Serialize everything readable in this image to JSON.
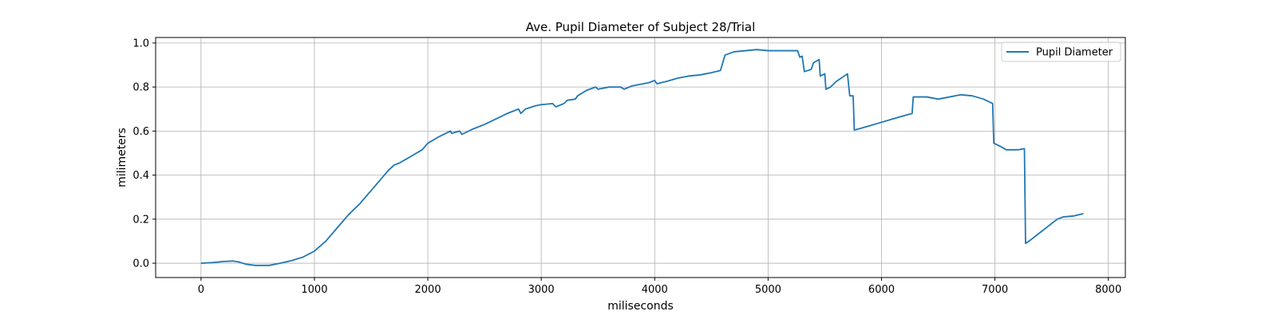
{
  "chart_data": {
    "type": "line",
    "title": "Ave. Pupil Diameter of Subject 28/Trial",
    "xlabel": "miliseconds",
    "ylabel": "milimeters",
    "xlim": [
      -400,
      8150
    ],
    "ylim": [
      -0.065,
      1.025
    ],
    "xticks": [
      0,
      1000,
      2000,
      3000,
      4000,
      5000,
      6000,
      7000,
      8000
    ],
    "yticks": [
      0.0,
      0.2,
      0.4,
      0.6,
      0.8,
      1.0
    ],
    "xtick_labels": [
      "0",
      "1000",
      "2000",
      "3000",
      "4000",
      "5000",
      "6000",
      "7000",
      "8000"
    ],
    "ytick_labels": [
      "0.0",
      "0.2",
      "0.4",
      "0.6",
      "0.8",
      "1.0"
    ],
    "grid": true,
    "legend_position": "top-right",
    "series": [
      {
        "name": "Pupil Diameter",
        "color": "#1f77b4",
        "points": [
          [
            0,
            0.0
          ],
          [
            100,
            0.003
          ],
          [
            200,
            0.008
          ],
          [
            280,
            0.01
          ],
          [
            330,
            0.006
          ],
          [
            400,
            -0.005
          ],
          [
            480,
            -0.01
          ],
          [
            600,
            -0.01
          ],
          [
            700,
            0.0
          ],
          [
            800,
            0.012
          ],
          [
            900,
            0.028
          ],
          [
            1000,
            0.055
          ],
          [
            1100,
            0.1
          ],
          [
            1200,
            0.16
          ],
          [
            1300,
            0.22
          ],
          [
            1400,
            0.27
          ],
          [
            1500,
            0.33
          ],
          [
            1600,
            0.39
          ],
          [
            1650,
            0.42
          ],
          [
            1700,
            0.445
          ],
          [
            1750,
            0.455
          ],
          [
            1850,
            0.485
          ],
          [
            1950,
            0.515
          ],
          [
            2000,
            0.545
          ],
          [
            2100,
            0.575
          ],
          [
            2200,
            0.6
          ],
          [
            2210,
            0.59
          ],
          [
            2280,
            0.6
          ],
          [
            2300,
            0.585
          ],
          [
            2400,
            0.61
          ],
          [
            2500,
            0.63
          ],
          [
            2600,
            0.655
          ],
          [
            2700,
            0.68
          ],
          [
            2800,
            0.7
          ],
          [
            2820,
            0.68
          ],
          [
            2860,
            0.7
          ],
          [
            2950,
            0.715
          ],
          [
            3000,
            0.72
          ],
          [
            3100,
            0.725
          ],
          [
            3130,
            0.71
          ],
          [
            3200,
            0.725
          ],
          [
            3230,
            0.74
          ],
          [
            3300,
            0.745
          ],
          [
            3320,
            0.76
          ],
          [
            3400,
            0.785
          ],
          [
            3480,
            0.8
          ],
          [
            3500,
            0.79
          ],
          [
            3600,
            0.8
          ],
          [
            3700,
            0.8
          ],
          [
            3730,
            0.79
          ],
          [
            3800,
            0.805
          ],
          [
            3900,
            0.815
          ],
          [
            3950,
            0.82
          ],
          [
            4000,
            0.83
          ],
          [
            4020,
            0.815
          ],
          [
            4100,
            0.825
          ],
          [
            4200,
            0.84
          ],
          [
            4300,
            0.85
          ],
          [
            4400,
            0.855
          ],
          [
            4500,
            0.865
          ],
          [
            4580,
            0.875
          ],
          [
            4600,
            0.91
          ],
          [
            4620,
            0.945
          ],
          [
            4700,
            0.96
          ],
          [
            4800,
            0.965
          ],
          [
            4900,
            0.97
          ],
          [
            5000,
            0.965
          ],
          [
            5100,
            0.965
          ],
          [
            5200,
            0.965
          ],
          [
            5260,
            0.965
          ],
          [
            5280,
            0.935
          ],
          [
            5300,
            0.94
          ],
          [
            5320,
            0.87
          ],
          [
            5380,
            0.88
          ],
          [
            5400,
            0.91
          ],
          [
            5450,
            0.925
          ],
          [
            5460,
            0.85
          ],
          [
            5500,
            0.86
          ],
          [
            5510,
            0.79
          ],
          [
            5550,
            0.8
          ],
          [
            5600,
            0.825
          ],
          [
            5700,
            0.86
          ],
          [
            5720,
            0.76
          ],
          [
            5750,
            0.76
          ],
          [
            5760,
            0.605
          ],
          [
            5800,
            0.61
          ],
          [
            5900,
            0.625
          ],
          [
            6000,
            0.64
          ],
          [
            6100,
            0.655
          ],
          [
            6200,
            0.67
          ],
          [
            6270,
            0.68
          ],
          [
            6280,
            0.755
          ],
          [
            6400,
            0.755
          ],
          [
            6500,
            0.745
          ],
          [
            6600,
            0.755
          ],
          [
            6700,
            0.765
          ],
          [
            6800,
            0.76
          ],
          [
            6900,
            0.745
          ],
          [
            6980,
            0.725
          ],
          [
            6990,
            0.545
          ],
          [
            7050,
            0.53
          ],
          [
            7100,
            0.515
          ],
          [
            7200,
            0.515
          ],
          [
            7260,
            0.52
          ],
          [
            7270,
            0.09
          ],
          [
            7300,
            0.1
          ],
          [
            7400,
            0.14
          ],
          [
            7500,
            0.18
          ],
          [
            7550,
            0.2
          ],
          [
            7600,
            0.21
          ],
          [
            7700,
            0.215
          ],
          [
            7780,
            0.225
          ]
        ]
      }
    ]
  }
}
